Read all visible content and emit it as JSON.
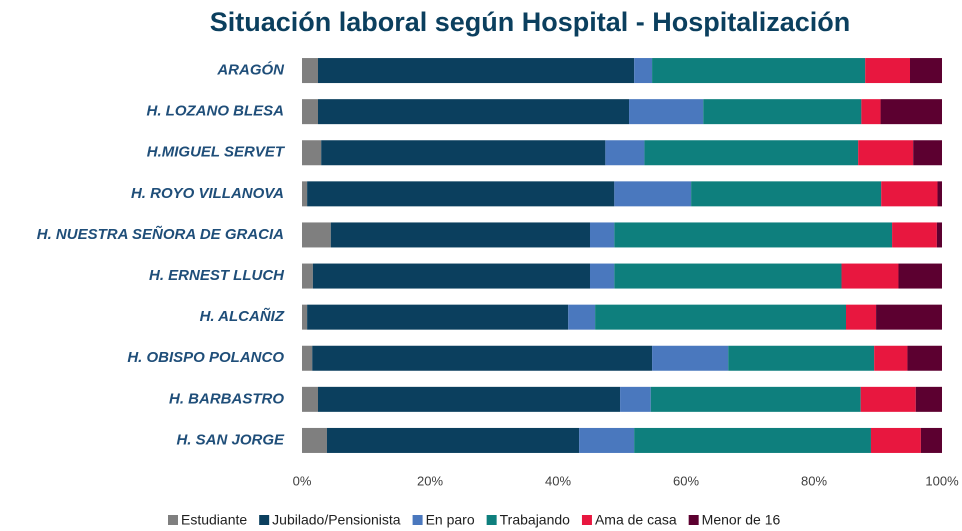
{
  "chart_data": {
    "type": "stacked_barh",
    "title": "Situación laboral según Hospital - Hospitalización",
    "categories": [
      "ARAGÓN",
      "H. LOZANO BLESA",
      "H.MIGUEL SERVET",
      "H. ROYO VILLANOVA",
      "H. NUESTRA SEÑORA DE GRACIA",
      "H. ERNEST LLUCH",
      "H. ALCAÑIZ",
      "H. OBISPO POLANCO",
      "H. BARBASTRO",
      "H. SAN JORGE"
    ],
    "series": [
      {
        "name": "Estudiante",
        "color": "#7f7f7f",
        "values": [
          2.5,
          2.5,
          3.0,
          0.8,
          4.5,
          1.7,
          0.8,
          1.6,
          2.5,
          3.9
        ]
      },
      {
        "name": "Jubilado/Pensionista",
        "color": "#0b3f5e",
        "values": [
          49.4,
          48.6,
          44.4,
          48.0,
          40.5,
          43.3,
          40.8,
          53.1,
          47.2,
          39.4
        ]
      },
      {
        "name": "En paro",
        "color": "#4a78be",
        "values": [
          2.8,
          11.6,
          6.1,
          12.0,
          3.8,
          3.8,
          4.2,
          11.9,
          4.8,
          8.6
        ]
      },
      {
        "name": "Trabajando",
        "color": "#0e7f7d",
        "values": [
          33.3,
          24.7,
          33.4,
          29.7,
          43.4,
          35.5,
          39.2,
          22.8,
          32.8,
          37.0
        ]
      },
      {
        "name": "Ama de casa",
        "color": "#e8173f",
        "values": [
          7.0,
          3.0,
          8.6,
          8.8,
          7.0,
          8.9,
          4.7,
          5.2,
          8.6,
          7.8
        ]
      },
      {
        "name": "Menor de 16",
        "color": "#5c0030",
        "values": [
          5.0,
          9.6,
          4.5,
          0.7,
          0.8,
          6.8,
          10.3,
          5.4,
          4.1,
          3.3
        ]
      }
    ],
    "xlim": [
      0,
      100
    ],
    "xticks": [
      {
        "value": 0,
        "label": "0%"
      },
      {
        "value": 20,
        "label": "20%"
      },
      {
        "value": 40,
        "label": "40%"
      },
      {
        "value": 60,
        "label": "60%"
      },
      {
        "value": 80,
        "label": "80%"
      },
      {
        "value": 100,
        "label": "100%"
      }
    ]
  }
}
